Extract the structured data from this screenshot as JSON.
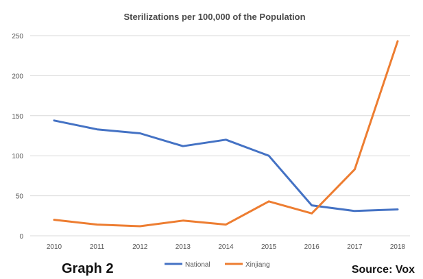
{
  "chart_data": {
    "type": "line",
    "title": "Sterilizations per 100,000 of the Population",
    "xlabel": "",
    "ylabel": "",
    "x": [
      "2010",
      "2011",
      "2012",
      "2013",
      "2014",
      "2015",
      "2016",
      "2017",
      "2018"
    ],
    "yticks": [
      0,
      50,
      100,
      150,
      200,
      250
    ],
    "ylim": [
      0,
      250
    ],
    "grid": true,
    "legend_position": "bottom",
    "series": [
      {
        "name": "National",
        "color": "#4472C4",
        "values": [
          144,
          133,
          128,
          112,
          120,
          100,
          38,
          31,
          33
        ]
      },
      {
        "name": "Xinjiang",
        "color": "#ED7D31",
        "values": [
          20,
          14,
          12,
          19,
          14,
          43,
          28,
          83,
          243
        ]
      }
    ]
  },
  "captions": {
    "left": "Graph 2",
    "right": "Source: Vox"
  }
}
